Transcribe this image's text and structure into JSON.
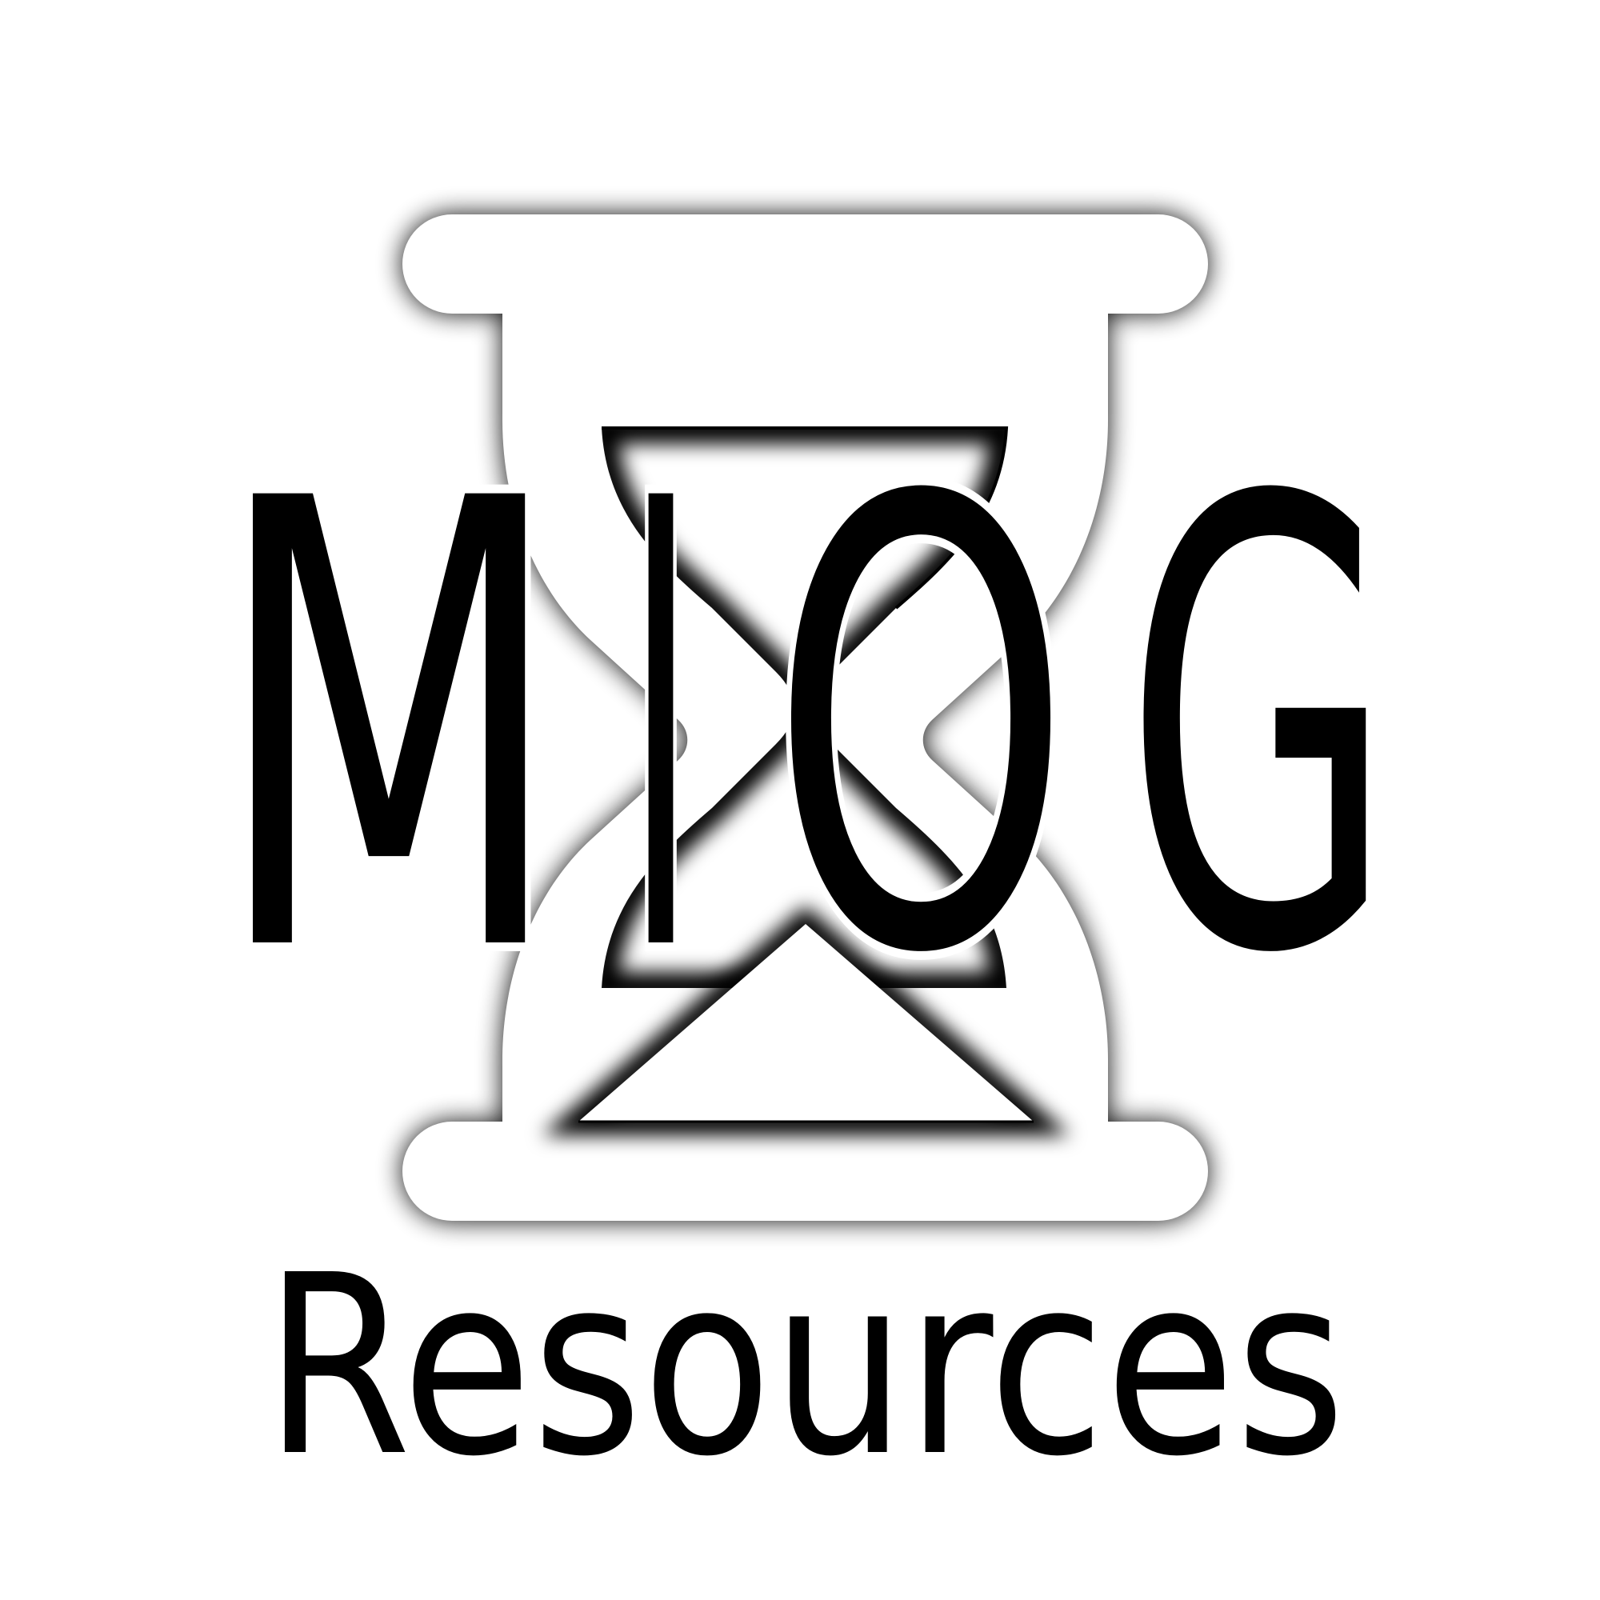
{
  "logo": {
    "wordmark": "MIOG",
    "letters": [
      "M",
      "I",
      "O",
      "G"
    ],
    "tagline": "Resources",
    "icon": "hourglass-icon"
  },
  "colors": {
    "background": "#ffffff",
    "ink": "#000000",
    "glass": "#ffffff",
    "shadow": "#000000"
  }
}
